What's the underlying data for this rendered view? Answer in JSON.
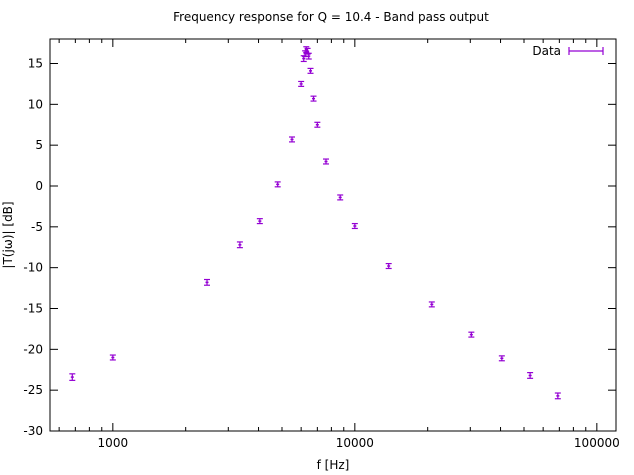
{
  "chart_data": {
    "type": "scatter",
    "title": "Frequency response for Q = 10.4 - Band pass output",
    "xlabel": "f [Hz]",
    "ylabel": "|T(jω)| [dB]",
    "xscale": "log",
    "xlim": [
      550,
      120000
    ],
    "ylim": [
      -30,
      18
    ],
    "xticks": [
      1000,
      10000,
      100000
    ],
    "xtick_labels": [
      "1000",
      "10000",
      "100000"
    ],
    "yticks": [
      -30,
      -25,
      -20,
      -15,
      -10,
      -5,
      0,
      5,
      10,
      15
    ],
    "ytick_labels": [
      "-30",
      "-25",
      "-20",
      "-15",
      "-10",
      "-5",
      "0",
      "5",
      "10",
      "15"
    ],
    "grid": false,
    "legend_position": "top-right",
    "colors": {
      "series": "#9400d3"
    },
    "series": [
      {
        "name": "Data",
        "errorbars": true,
        "points": [
          {
            "x": 680,
            "y": -23.4,
            "err": 0.4
          },
          {
            "x": 1000,
            "y": -21.0,
            "err": 0.3
          },
          {
            "x": 2450,
            "y": -11.8,
            "err": 0.35
          },
          {
            "x": 3350,
            "y": -7.2,
            "err": 0.35
          },
          {
            "x": 4050,
            "y": -4.3,
            "err": 0.3
          },
          {
            "x": 4800,
            "y": 0.2,
            "err": 0.3
          },
          {
            "x": 5500,
            "y": 5.7,
            "err": 0.3
          },
          {
            "x": 6000,
            "y": 12.5,
            "err": 0.3
          },
          {
            "x": 6150,
            "y": 15.6,
            "err": 0.35
          },
          {
            "x": 6230,
            "y": 16.2,
            "err": 0.35
          },
          {
            "x": 6300,
            "y": 16.7,
            "err": 0.35
          },
          {
            "x": 6380,
            "y": 16.5,
            "err": 0.35
          },
          {
            "x": 6450,
            "y": 15.9,
            "err": 0.35
          },
          {
            "x": 6560,
            "y": 14.1,
            "err": 0.3
          },
          {
            "x": 6750,
            "y": 10.7,
            "err": 0.3
          },
          {
            "x": 7000,
            "y": 7.5,
            "err": 0.3
          },
          {
            "x": 7600,
            "y": 3.0,
            "err": 0.3
          },
          {
            "x": 8700,
            "y": -1.4,
            "err": 0.3
          },
          {
            "x": 10000,
            "y": -4.9,
            "err": 0.3
          },
          {
            "x": 13800,
            "y": -9.8,
            "err": 0.3
          },
          {
            "x": 20800,
            "y": -14.5,
            "err": 0.3
          },
          {
            "x": 30300,
            "y": -18.2,
            "err": 0.3
          },
          {
            "x": 40500,
            "y": -21.1,
            "err": 0.3
          },
          {
            "x": 53000,
            "y": -23.2,
            "err": 0.35
          },
          {
            "x": 69000,
            "y": -25.7,
            "err": 0.35
          }
        ]
      }
    ]
  }
}
